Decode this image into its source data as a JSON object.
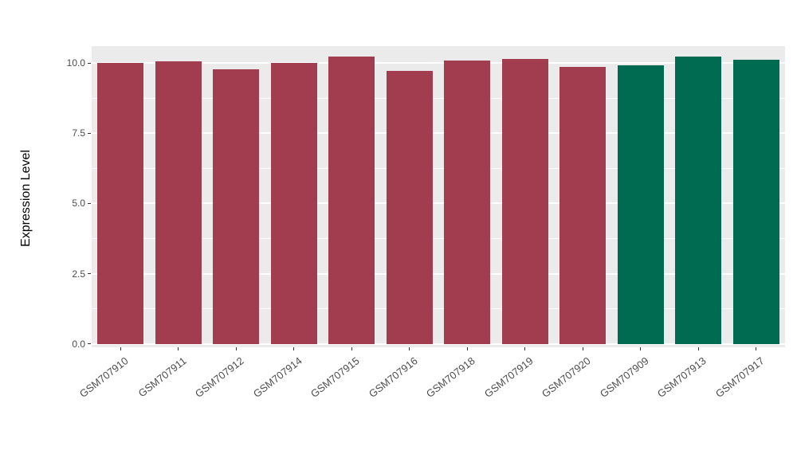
{
  "chart_data": {
    "type": "bar",
    "title": "",
    "xlabel": "",
    "ylabel": "Expression Level",
    "ylim": [
      0,
      10.6
    ],
    "yticks": [
      0,
      2.5,
      5,
      7.5,
      10
    ],
    "ytick_labels": [
      "0.0",
      "2.5",
      "5.0",
      "7.5",
      "10.0"
    ],
    "yticks_minor": [
      1.25,
      3.75,
      6.25,
      8.75
    ],
    "categories": [
      "GSM707910",
      "GSM707911",
      "GSM707912",
      "GSM707914",
      "GSM707915",
      "GSM707916",
      "GSM707918",
      "GSM707919",
      "GSM707920",
      "GSM707909",
      "GSM707913",
      "GSM707917"
    ],
    "values": [
      10.0,
      10.05,
      9.78,
      10.0,
      10.22,
      9.72,
      10.1,
      10.15,
      9.87,
      9.93,
      10.22,
      10.12
    ],
    "groups": [
      "red",
      "red",
      "red",
      "red",
      "red",
      "red",
      "red",
      "red",
      "red",
      "green",
      "green",
      "green"
    ],
    "group_colors": {
      "red": "#A13D4F",
      "green": "#006B50"
    },
    "legend": "none",
    "grid": "on"
  },
  "style": {
    "panel_background": "#EBEBEB",
    "gridline_color": "#FFFFFF",
    "tick_color": "#333333",
    "axis_text_color": "#4D4D4D",
    "title_color": "#000000",
    "figure_background": "#FFFFFF"
  }
}
